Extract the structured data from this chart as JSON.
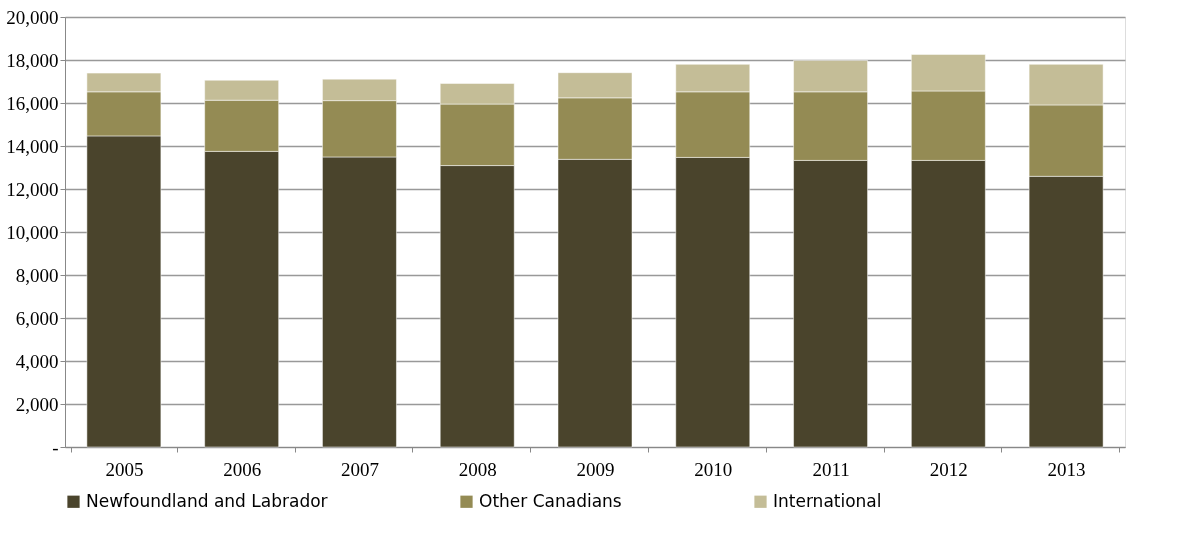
{
  "chart_data": {
    "type": "bar",
    "stacked": true,
    "categories": [
      "2005",
      "2006",
      "2007",
      "2008",
      "2009",
      "2010",
      "2011",
      "2012",
      "2013"
    ],
    "series": [
      {
        "name": "Newfoundland and Labrador",
        "color": "#4a442c",
        "values": [
          14470,
          13750,
          13490,
          13090,
          13380,
          13470,
          13330,
          13330,
          12590
        ]
      },
      {
        "name": "Other Canadians",
        "color": "#948b54",
        "values": [
          2050,
          2380,
          2620,
          2860,
          2860,
          3050,
          3190,
          3230,
          3320
        ]
      },
      {
        "name": "International",
        "color": "#c4bd97",
        "values": [
          870,
          930,
          1000,
          960,
          1170,
          1280,
          1460,
          1700,
          1890
        ]
      }
    ],
    "ylim": [
      0,
      20000
    ],
    "yticks": [
      {
        "value": 0,
        "label": "-"
      },
      {
        "value": 2000,
        "label": "2,000"
      },
      {
        "value": 4000,
        "label": "4,000"
      },
      {
        "value": 6000,
        "label": "6,000"
      },
      {
        "value": 8000,
        "label": "8,000"
      },
      {
        "value": 10000,
        "label": "10,000"
      },
      {
        "value": 12000,
        "label": "12,000"
      },
      {
        "value": 14000,
        "label": "14,000"
      },
      {
        "value": 16000,
        "label": "16,000"
      },
      {
        "value": 18000,
        "label": "18,000"
      },
      {
        "value": 20000,
        "label": "20,000"
      }
    ],
    "grid": "y",
    "legend": "bottom"
  }
}
